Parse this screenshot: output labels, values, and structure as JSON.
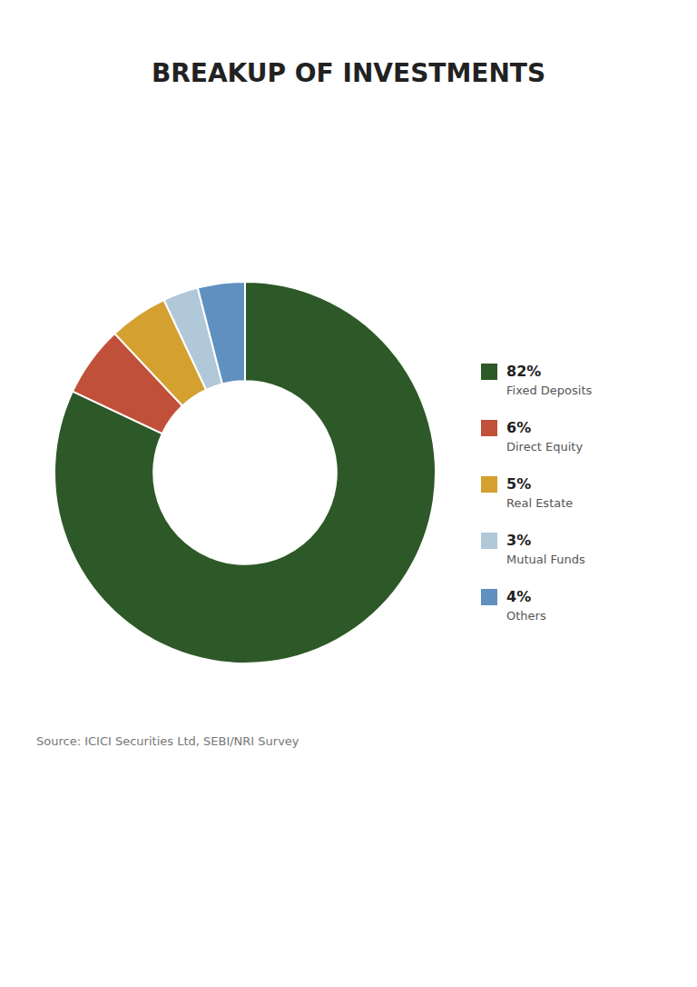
{
  "chart_data": {
    "type": "pie",
    "title": "BREAKUP OF INVESTMENTS",
    "categories": [
      "Fixed Deposits",
      "Direct Equity",
      "Real Estate",
      "Mutual Funds",
      "Others"
    ],
    "values": [
      82,
      6,
      5,
      3,
      4
    ],
    "value_labels": [
      "82%",
      "6%",
      "5%",
      "3%",
      "4%"
    ],
    "colors": [
      "#2d5827",
      "#c0503a",
      "#d4a030",
      "#b0c8d8",
      "#6090c0"
    ],
    "legend": "right",
    "annotations": [
      "Source: ICICI Securities Ltd, SEBI/NRI Survey"
    ]
  }
}
